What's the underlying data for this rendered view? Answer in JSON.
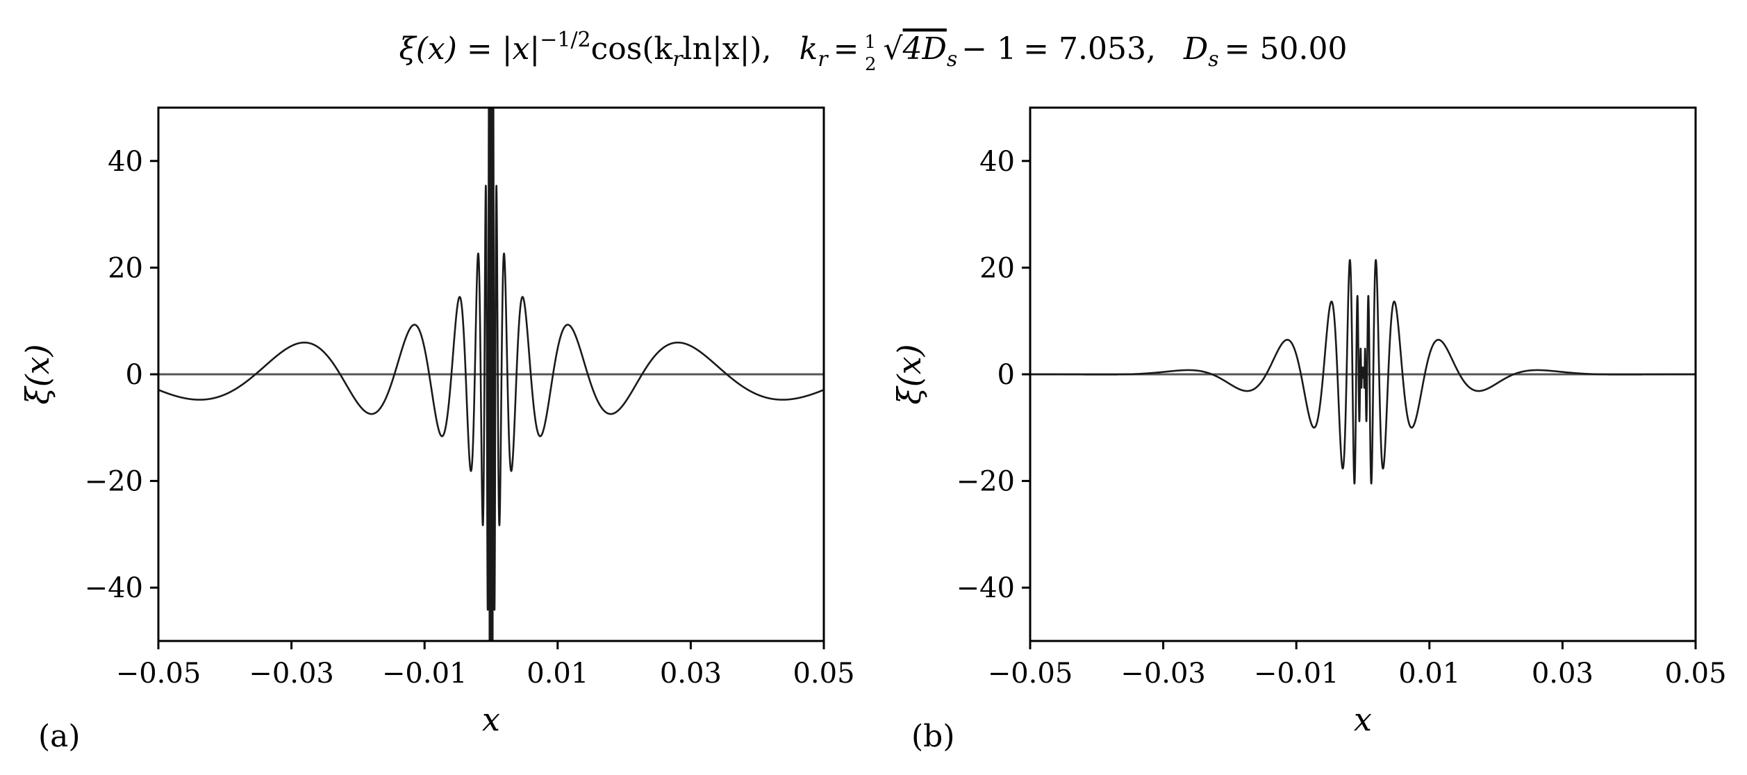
{
  "figure_title": {
    "lhs": "ξ(x) = |x|",
    "lhs_exp": "−1/2",
    "lhs_rest": "cos(k",
    "lhs_sub": "r",
    "lhs_end": "ln|x|),",
    "kr_lhs": "k",
    "kr_sub": "r",
    "kr_eq": "=",
    "half_num": "1",
    "half_den": "2",
    "sqrt_arg": "4D",
    "sqrt_arg_sub": "s",
    "sqrt_arg_end": "− 1",
    "kr_value": "= 7.053,",
    "ds_lhs": "D",
    "ds_sub": "s",
    "ds_value": "= 50.00"
  },
  "chart_data": [
    {
      "type": "line",
      "panel_label": "(a)",
      "xlabel": "x",
      "ylabel": "ξ(x)",
      "xlim": [
        -0.05,
        0.05
      ],
      "ylim": [
        -50,
        50
      ],
      "xticks": [
        -0.05,
        -0.03,
        -0.01,
        0.01,
        0.03,
        0.05
      ],
      "xtick_labels": [
        "−0.05",
        "−0.03",
        "−0.01",
        "0.01",
        "0.03",
        "0.05"
      ],
      "yticks": [
        40,
        20,
        0,
        -20,
        -40
      ],
      "ytick_labels": [
        "40",
        "20",
        "0",
        "−20",
        "−40"
      ],
      "zero_line": true,
      "grid": false,
      "function": "xi(x) = |x|^(-1/2) cos(k_r ln|x|)",
      "k_r": 7.053,
      "envelope": "none",
      "line_color": "#1a1a1a"
    },
    {
      "type": "line",
      "panel_label": "(b)",
      "xlabel": "x",
      "ylabel": "ξ(x)",
      "xlim": [
        -0.05,
        0.05
      ],
      "ylim": [
        -50,
        50
      ],
      "xticks": [
        -0.05,
        -0.03,
        -0.01,
        0.01,
        0.03,
        0.05
      ],
      "xtick_labels": [
        "−0.05",
        "−0.03",
        "−0.01",
        "0.01",
        "0.03",
        "0.05"
      ],
      "yticks": [
        40,
        20,
        0,
        -20,
        -40
      ],
      "ytick_labels": [
        "40",
        "20",
        "0",
        "−20",
        "−40"
      ],
      "zero_line": true,
      "grid": false,
      "function": "xi(x) = |x|^(-1/2) cos(k_r ln|x|), damped in the core and the tails",
      "k_r": 7.053,
      "envelope": "damped",
      "line_color": "#1a1a1a"
    }
  ],
  "colors": {
    "curve": "#1a1a1a",
    "zero_line": "#555555",
    "axes": "#000000"
  }
}
